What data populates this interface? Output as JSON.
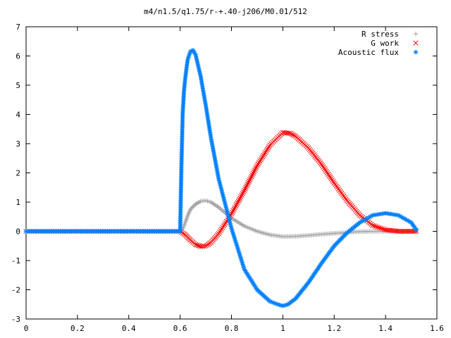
{
  "chart_data": {
    "type": "scatter",
    "title": "m4/n1.5/q1.75/r-+.40-j206/M0.01/512",
    "xlabel": "",
    "ylabel": "",
    "xlim": [
      0,
      1.6
    ],
    "ylim": [
      -3,
      7
    ],
    "x_ticks": [
      "0",
      "0.2",
      "0.4",
      "0.6",
      "0.8",
      "1",
      "1.2",
      "1.4",
      "1.6"
    ],
    "y_ticks": [
      "-3",
      "-2",
      "-1",
      "0",
      "1",
      "2",
      "3",
      "4",
      "5",
      "6",
      "7"
    ],
    "grid": false,
    "legend_position": "top-right",
    "series": [
      {
        "name": "R stress",
        "marker": "+",
        "color": "#a0a0a0",
        "points": [
          [
            0.0,
            0
          ],
          [
            0.6,
            0
          ],
          [
            0.61,
            0.08
          ],
          [
            0.62,
            0.3
          ],
          [
            0.63,
            0.55
          ],
          [
            0.64,
            0.75
          ],
          [
            0.66,
            0.93
          ],
          [
            0.68,
            1.03
          ],
          [
            0.7,
            1.05
          ],
          [
            0.72,
            1.0
          ],
          [
            0.75,
            0.82
          ],
          [
            0.8,
            0.45
          ],
          [
            0.85,
            0.18
          ],
          [
            0.9,
            0.0
          ],
          [
            0.95,
            -0.12
          ],
          [
            1.0,
            -0.18
          ],
          [
            1.05,
            -0.17
          ],
          [
            1.1,
            -0.14
          ],
          [
            1.15,
            -0.1
          ],
          [
            1.2,
            -0.07
          ],
          [
            1.25,
            -0.04
          ],
          [
            1.3,
            -0.01
          ],
          [
            1.35,
            0.0
          ],
          [
            1.4,
            0.0
          ],
          [
            1.45,
            0.0
          ],
          [
            1.5,
            0.0
          ],
          [
            1.52,
            0.0
          ]
        ]
      },
      {
        "name": "G work",
        "marker": "x",
        "color": "#ff0000",
        "points": [
          [
            0.0,
            0
          ],
          [
            0.6,
            0
          ],
          [
            0.62,
            -0.12
          ],
          [
            0.64,
            -0.3
          ],
          [
            0.66,
            -0.45
          ],
          [
            0.68,
            -0.52
          ],
          [
            0.7,
            -0.5
          ],
          [
            0.72,
            -0.38
          ],
          [
            0.75,
            -0.08
          ],
          [
            0.8,
            0.6
          ],
          [
            0.85,
            1.4
          ],
          [
            0.9,
            2.25
          ],
          [
            0.95,
            2.95
          ],
          [
            1.0,
            3.38
          ],
          [
            1.03,
            3.35
          ],
          [
            1.05,
            3.25
          ],
          [
            1.1,
            2.85
          ],
          [
            1.15,
            2.3
          ],
          [
            1.2,
            1.65
          ],
          [
            1.25,
            1.05
          ],
          [
            1.3,
            0.55
          ],
          [
            1.35,
            0.2
          ],
          [
            1.4,
            0.05
          ],
          [
            1.45,
            0.0
          ],
          [
            1.5,
            0.0
          ],
          [
            1.52,
            0.0
          ]
        ]
      },
      {
        "name": "Acoustic flux",
        "marker": "*",
        "color": "#0080ff",
        "points": [
          [
            0.0,
            0
          ],
          [
            0.6,
            0
          ],
          [
            0.605,
            2.25
          ],
          [
            0.61,
            4.05
          ],
          [
            0.615,
            4.8
          ],
          [
            0.62,
            5.25
          ],
          [
            0.625,
            5.6
          ],
          [
            0.63,
            5.9
          ],
          [
            0.64,
            6.15
          ],
          [
            0.65,
            6.2
          ],
          [
            0.66,
            6.05
          ],
          [
            0.68,
            5.3
          ],
          [
            0.7,
            4.3
          ],
          [
            0.72,
            3.2
          ],
          [
            0.75,
            1.8
          ],
          [
            0.8,
            0.1
          ],
          [
            0.85,
            -1.3
          ],
          [
            0.9,
            -2.0
          ],
          [
            0.95,
            -2.4
          ],
          [
            0.98,
            -2.5
          ],
          [
            1.0,
            -2.55
          ],
          [
            1.02,
            -2.5
          ],
          [
            1.05,
            -2.3
          ],
          [
            1.1,
            -1.75
          ],
          [
            1.15,
            -1.1
          ],
          [
            1.2,
            -0.5
          ],
          [
            1.25,
            -0.05
          ],
          [
            1.3,
            0.3
          ],
          [
            1.35,
            0.55
          ],
          [
            1.4,
            0.62
          ],
          [
            1.45,
            0.55
          ],
          [
            1.5,
            0.3
          ],
          [
            1.52,
            0.05
          ]
        ]
      }
    ]
  }
}
